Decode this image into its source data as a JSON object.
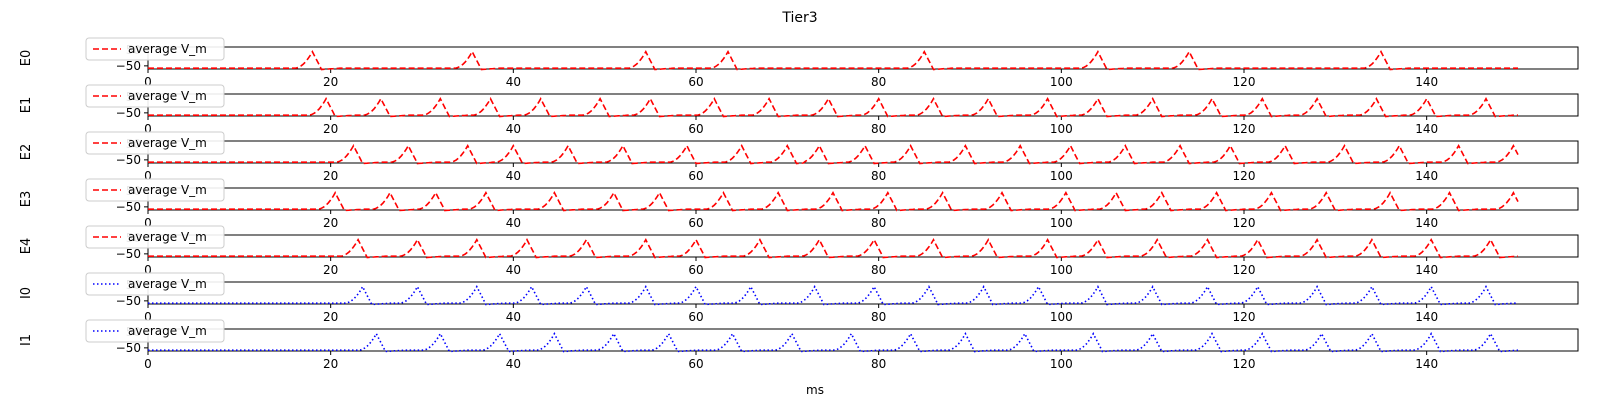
{
  "figure": {
    "title": "Tier3",
    "xlabel": "ms",
    "legend_label": "average V_m"
  },
  "chart_data": [
    {
      "type": "line",
      "ylabel": "E0",
      "legend": "top-left",
      "legend_label": "average V_m",
      "xlim": [
        0,
        150
      ],
      "ylim": [
        -70,
        70
      ],
      "yticks": [
        50,
        -50
      ],
      "xticks": [
        0,
        20,
        40,
        60,
        80,
        100,
        120,
        140
      ],
      "grid": false,
      "line_style": "dashed",
      "color": "#ff0000",
      "baseline_mV": -65,
      "peak_mV": 40,
      "spike_times_ms": [
        18,
        35.5,
        54.5,
        63.5,
        85,
        104,
        114,
        135
      ]
    },
    {
      "type": "line",
      "ylabel": "E1",
      "legend": "top-left",
      "legend_label": "average V_m",
      "xlim": [
        0,
        150
      ],
      "ylim": [
        -70,
        70
      ],
      "yticks": [
        50,
        -50
      ],
      "xticks": [
        0,
        20,
        40,
        60,
        80,
        100,
        120,
        140
      ],
      "grid": false,
      "line_style": "dashed",
      "color": "#ff0000",
      "baseline_mV": -65,
      "peak_mV": 40,
      "spike_times_ms": [
        19.5,
        25.5,
        32,
        37.5,
        43,
        49.5,
        55,
        62,
        68,
        74.5,
        80,
        86,
        92,
        98.5,
        104,
        110,
        116.5,
        122,
        128,
        134.5,
        140,
        146.5
      ]
    },
    {
      "type": "line",
      "ylabel": "E2",
      "legend": "top-left",
      "legend_label": "average V_m",
      "xlim": [
        0,
        150
      ],
      "ylim": [
        -70,
        70
      ],
      "yticks": [
        50,
        -50
      ],
      "xticks": [
        0,
        20,
        40,
        60,
        80,
        100,
        120,
        140
      ],
      "grid": false,
      "line_style": "dashed",
      "color": "#ff0000",
      "baseline_mV": -65,
      "peak_mV": 40,
      "spike_times_ms": [
        22.5,
        28.5,
        35,
        40,
        46,
        52,
        59,
        65,
        70,
        73.5,
        78.5,
        83.5,
        89.5,
        95.5,
        101,
        107,
        113,
        118.5,
        124.5,
        131,
        137,
        143.5,
        149.5
      ]
    },
    {
      "type": "line",
      "ylabel": "E3",
      "legend": "top-left",
      "legend_label": "average V_m",
      "xlim": [
        0,
        150
      ],
      "ylim": [
        -70,
        70
      ],
      "yticks": [
        50,
        -50
      ],
      "xticks": [
        0,
        20,
        40,
        60,
        80,
        100,
        120,
        140
      ],
      "grid": false,
      "line_style": "dashed",
      "color": "#ff0000",
      "baseline_mV": -65,
      "peak_mV": 40,
      "spike_times_ms": [
        20.5,
        26.5,
        31.5,
        37,
        44.5,
        51,
        56,
        63,
        69,
        75,
        81,
        87,
        93.5,
        100.5,
        106,
        111,
        117,
        123,
        129,
        136,
        142.5,
        149.5
      ]
    },
    {
      "type": "line",
      "ylabel": "E4",
      "legend": "top-left",
      "legend_label": "average V_m",
      "xlim": [
        0,
        150
      ],
      "ylim": [
        -70,
        70
      ],
      "yticks": [
        50,
        -50
      ],
      "xticks": [
        0,
        20,
        40,
        60,
        80,
        100,
        120,
        140
      ],
      "grid": false,
      "line_style": "dashed",
      "color": "#ff0000",
      "baseline_mV": -65,
      "peak_mV": 40,
      "spike_times_ms": [
        23,
        29.5,
        36,
        41.5,
        48,
        54.5,
        60,
        67,
        73.5,
        79.5,
        86,
        92,
        98.5,
        104,
        110.5,
        116,
        121.5,
        128,
        134,
        140.5,
        147
      ]
    },
    {
      "type": "line",
      "ylabel": "I0",
      "legend": "top-left",
      "legend_label": "average V_m",
      "xlim": [
        0,
        150
      ],
      "ylim": [
        -70,
        70
      ],
      "yticks": [
        50,
        -50
      ],
      "xticks": [
        0,
        20,
        40,
        60,
        80,
        100,
        120,
        140
      ],
      "grid": false,
      "line_style": "dotted",
      "color": "#0000ff",
      "baseline_mV": -65,
      "peak_mV": 40,
      "spike_times_ms": [
        23.5,
        29.5,
        36,
        42,
        48,
        54.5,
        60,
        66,
        73,
        79.5,
        85.5,
        91.5,
        97.5,
        104,
        110,
        116,
        121.5,
        128,
        134,
        140.5,
        146.5
      ]
    },
    {
      "type": "line",
      "ylabel": "I1",
      "legend": "top-left",
      "legend_label": "average V_m",
      "xlim": [
        0,
        150
      ],
      "ylim": [
        -70,
        70
      ],
      "yticks": [
        50,
        -50
      ],
      "xticks": [
        0,
        20,
        40,
        60,
        80,
        100,
        120,
        140
      ],
      "grid": false,
      "line_style": "dotted",
      "color": "#0000ff",
      "baseline_mV": -65,
      "peak_mV": 40,
      "spike_times_ms": [
        25,
        32,
        38.5,
        44.5,
        51,
        57,
        64,
        70.5,
        77,
        83.5,
        89.5,
        96,
        103.5,
        110,
        116.5,
        122,
        128.5,
        134,
        140.5,
        147
      ]
    }
  ]
}
